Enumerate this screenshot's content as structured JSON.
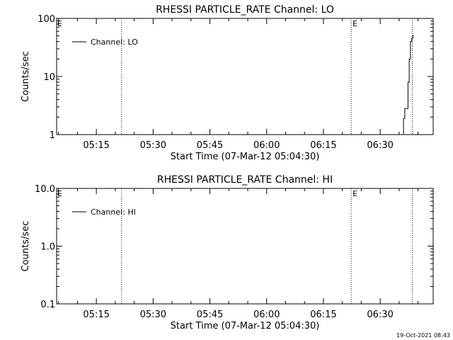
{
  "chart_data": [
    {
      "type": "line",
      "title": "RHESSI PARTICLE_RATE Channel: LO",
      "xlabel": "Start Time (07-Mar-12 05:04:30)",
      "ylabel": "Counts/sec",
      "y_scale": "log",
      "ylim": [
        1,
        100
      ],
      "x_range": [
        "05:04:30",
        "06:44:00"
      ],
      "x_ticks": [
        "05:15",
        "05:30",
        "05:45",
        "06:00",
        "06:15",
        "06:30"
      ],
      "y_ticks": [
        "1",
        "10",
        "100"
      ],
      "markers": [
        {
          "time": "05:21:40",
          "label": ""
        },
        {
          "time": "06:22:20",
          "label": "E"
        },
        {
          "time": "06:38:30",
          "label": ""
        }
      ],
      "left_edge_label": "E",
      "legend": {
        "position": "top-left"
      },
      "series": [
        {
          "name": "Channel: LO",
          "points": [
            [
              "06:35:50",
              1.0
            ],
            [
              "06:36:10",
              1.9
            ],
            [
              "06:36:30",
              2.8
            ],
            [
              "06:37:00",
              2.8
            ],
            [
              "06:37:20",
              8
            ],
            [
              "06:37:40",
              20
            ],
            [
              "06:38:00",
              40
            ],
            [
              "06:38:20",
              46
            ],
            [
              "06:38:40",
              52
            ]
          ]
        }
      ]
    },
    {
      "type": "line",
      "title": "RHESSI PARTICLE_RATE Channel: HI",
      "xlabel": "Start Time (07-Mar-12 05:04:30)",
      "ylabel": "Counts/sec",
      "y_scale": "log",
      "ylim": [
        0.1,
        10
      ],
      "x_range": [
        "05:04:30",
        "06:44:00"
      ],
      "x_ticks": [
        "05:15",
        "05:30",
        "05:45",
        "06:00",
        "06:15",
        "06:30"
      ],
      "y_ticks": [
        "0.1",
        "1.0",
        "10.0"
      ],
      "markers": [
        {
          "time": "05:21:40",
          "label": ""
        },
        {
          "time": "06:22:20",
          "label": "E"
        },
        {
          "time": "06:38:30",
          "label": ""
        }
      ],
      "left_edge_label": "E",
      "legend": {
        "position": "top-left"
      },
      "series": [
        {
          "name": "Channel: HI",
          "points": []
        }
      ]
    }
  ],
  "footer": {
    "timestamp": "19-Oct-2021 08:43"
  }
}
